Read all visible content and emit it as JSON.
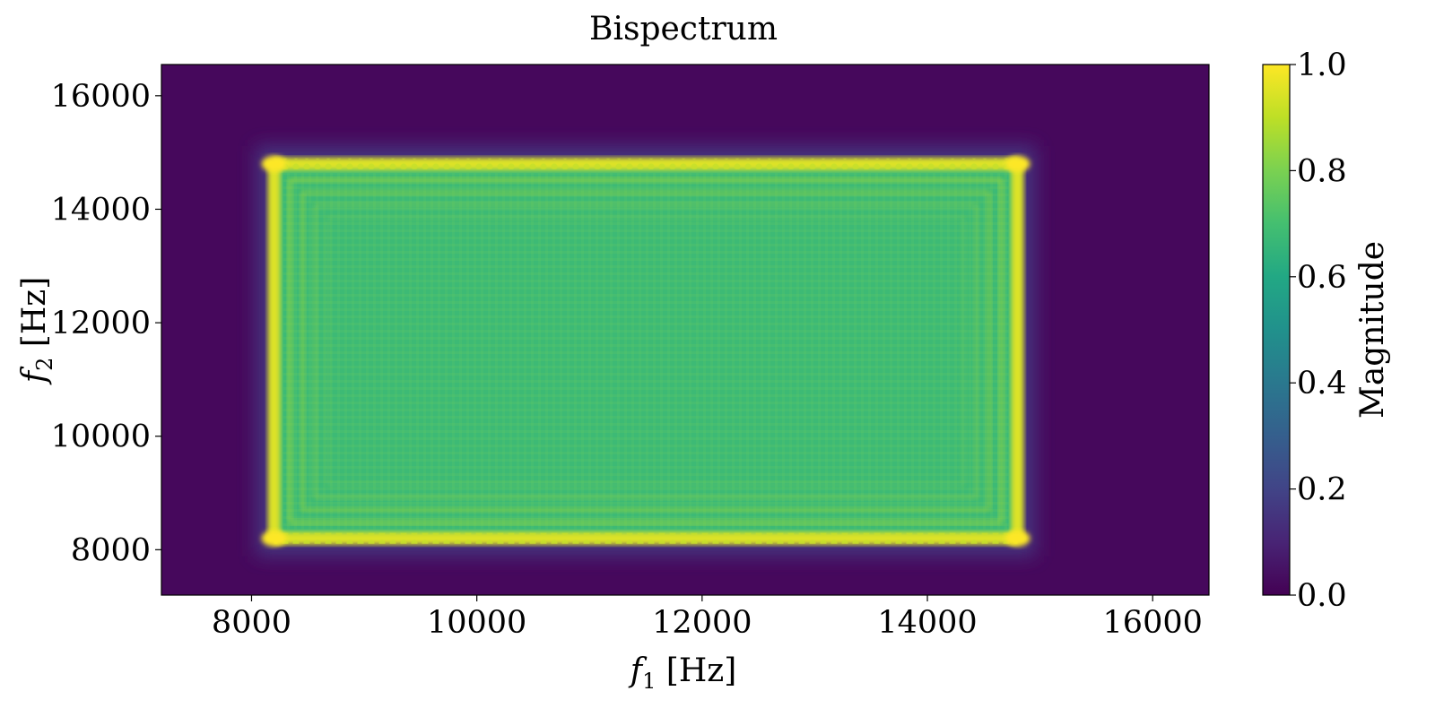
{
  "chart_data": {
    "type": "heatmap",
    "title": "Bispectrum",
    "xlabel": {
      "symbol": "f",
      "sub": "1",
      "unit": " [Hz]"
    },
    "ylabel": {
      "symbol": "f",
      "sub": "2",
      "unit": " [Hz]"
    },
    "xlim": [
      7200,
      16500
    ],
    "ylim": [
      7200,
      16550
    ],
    "x_ticks": [
      8000,
      10000,
      12000,
      14000,
      16000
    ],
    "y_ticks": [
      8000,
      10000,
      12000,
      14000,
      16000
    ],
    "x_tick_labels": [
      "8000",
      "10000",
      "12000",
      "14000",
      "16000"
    ],
    "y_tick_labels": [
      "8000",
      "10000",
      "12000",
      "14000",
      "16000"
    ],
    "colormap": "viridis",
    "grid": false,
    "colorbar": {
      "label": "Magnitude",
      "range": [
        0.0,
        1.0
      ],
      "ticks": [
        0.0,
        0.2,
        0.4,
        0.6,
        0.8,
        1.0
      ],
      "tick_labels": [
        "0.0",
        "0.2",
        "0.4",
        "0.6",
        "0.8",
        "1.0"
      ]
    },
    "region": {
      "description_x_range": [
        8200,
        14800
      ],
      "description_y_range": [
        8200,
        14800
      ],
      "interior_value": 0.68,
      "edge_peak_value": 0.95,
      "corner_peak_value": 1.0,
      "background_value": 0.03
    }
  }
}
